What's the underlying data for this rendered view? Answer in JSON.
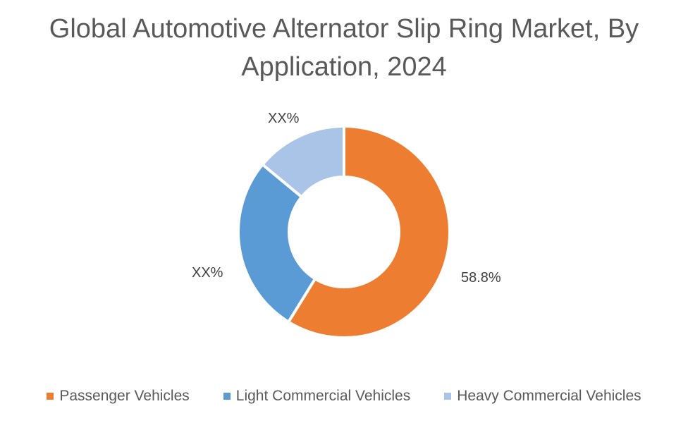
{
  "chart_data": {
    "type": "pie",
    "subtype": "donut",
    "title": "Global Automotive Alternator Slip Ring Market, By Application, 2024",
    "title_lines": [
      "Global Automotive Alternator Slip Ring Market, By",
      "Application, 2024"
    ],
    "categories": [
      "Passenger Vehicles",
      "Light Commercial Vehicles",
      "Heavy Commercial Vehicles"
    ],
    "values": [
      58.8,
      27.2,
      14.0
    ],
    "data_labels": [
      "58.8%",
      "XX%",
      "XX%"
    ],
    "colors": [
      "#ED7D31",
      "#5B9BD5",
      "#A9C4E6"
    ],
    "legend_position": "bottom",
    "grid": false
  }
}
